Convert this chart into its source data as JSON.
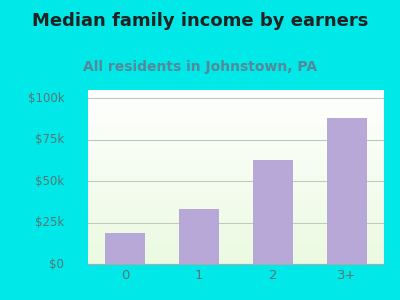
{
  "title": "Median family income by earners",
  "subtitle": "All residents in Johnstown, PA",
  "categories": [
    "0",
    "1",
    "2",
    "3+"
  ],
  "values": [
    19000,
    33000,
    63000,
    88000
  ],
  "bar_color": "#b8a8d8",
  "title_fontsize": 13,
  "subtitle_fontsize": 10,
  "subtitle_color": "#558899",
  "background_color": "#00e8e8",
  "yticks": [
    0,
    25000,
    50000,
    75000,
    100000
  ],
  "ytick_labels": [
    "$0",
    "$25k",
    "$50k",
    "$75k",
    "$100k"
  ],
  "ylim": [
    0,
    105000
  ],
  "grid_color": "#bbccbb",
  "tick_color": "#557777",
  "title_color": "#222222"
}
